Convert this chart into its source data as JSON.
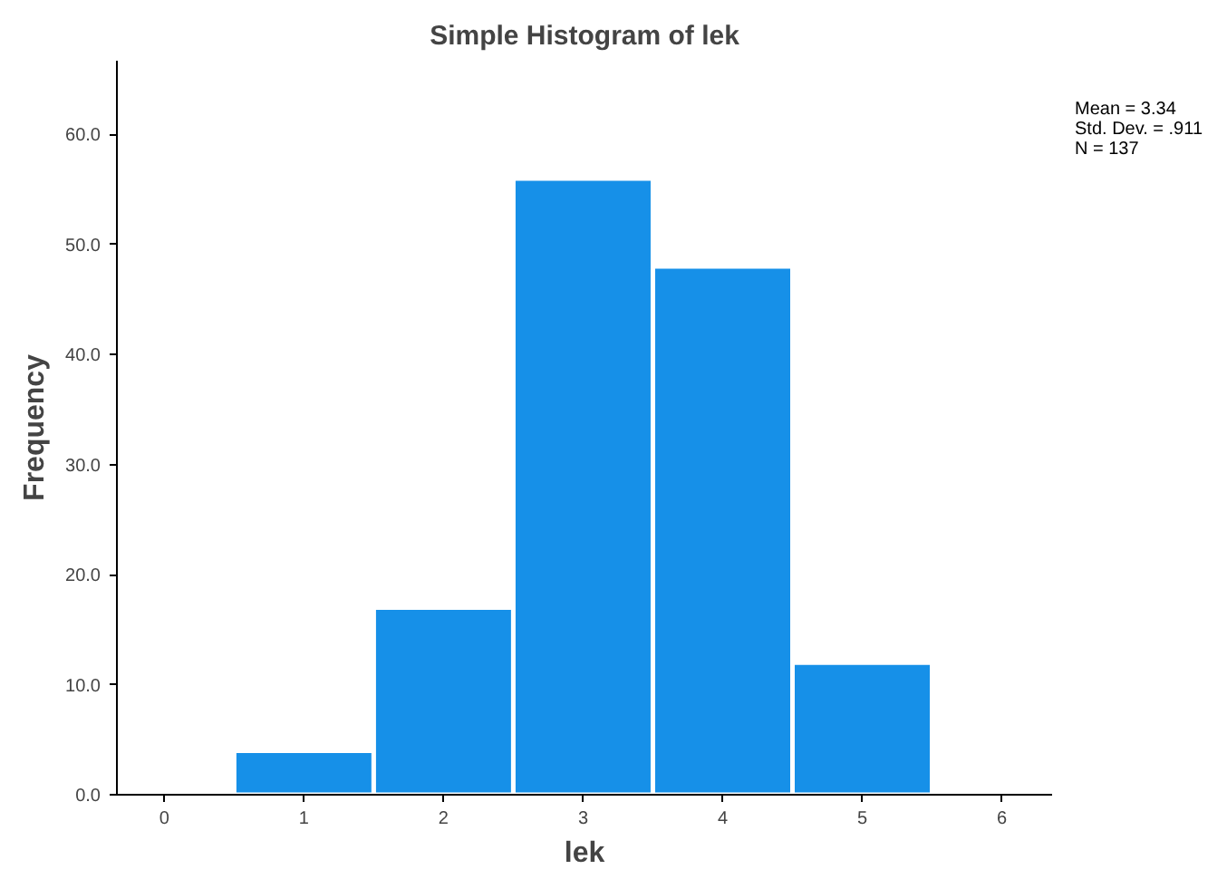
{
  "chart_data": {
    "type": "histogram",
    "title": "Simple Histogram of lek",
    "xlabel": "lek",
    "ylabel": "Frequency",
    "bins": [
      0.5,
      1.5,
      2.5,
      3.5,
      4.5,
      5.5
    ],
    "values": [
      4,
      17,
      56,
      48,
      12
    ],
    "color": "#1690e8",
    "xlim": [
      -0.34,
      6.36
    ],
    "xticks": [
      0,
      1,
      2,
      3,
      4,
      5,
      6
    ],
    "ylim": [
      0,
      66.7
    ],
    "yticks": [
      {
        "value": 0,
        "label": "0.0"
      },
      {
        "value": 10,
        "label": "10.0"
      },
      {
        "value": 20,
        "label": "20.0"
      },
      {
        "value": 30,
        "label": "30.0"
      },
      {
        "value": 40,
        "label": "40.0"
      },
      {
        "value": 50,
        "label": "50.0"
      },
      {
        "value": 60,
        "label": "60.0"
      }
    ],
    "grid": false,
    "annotations": [
      "Mean = 3.34",
      "Std. Dev. = .911",
      "N = 137"
    ]
  }
}
